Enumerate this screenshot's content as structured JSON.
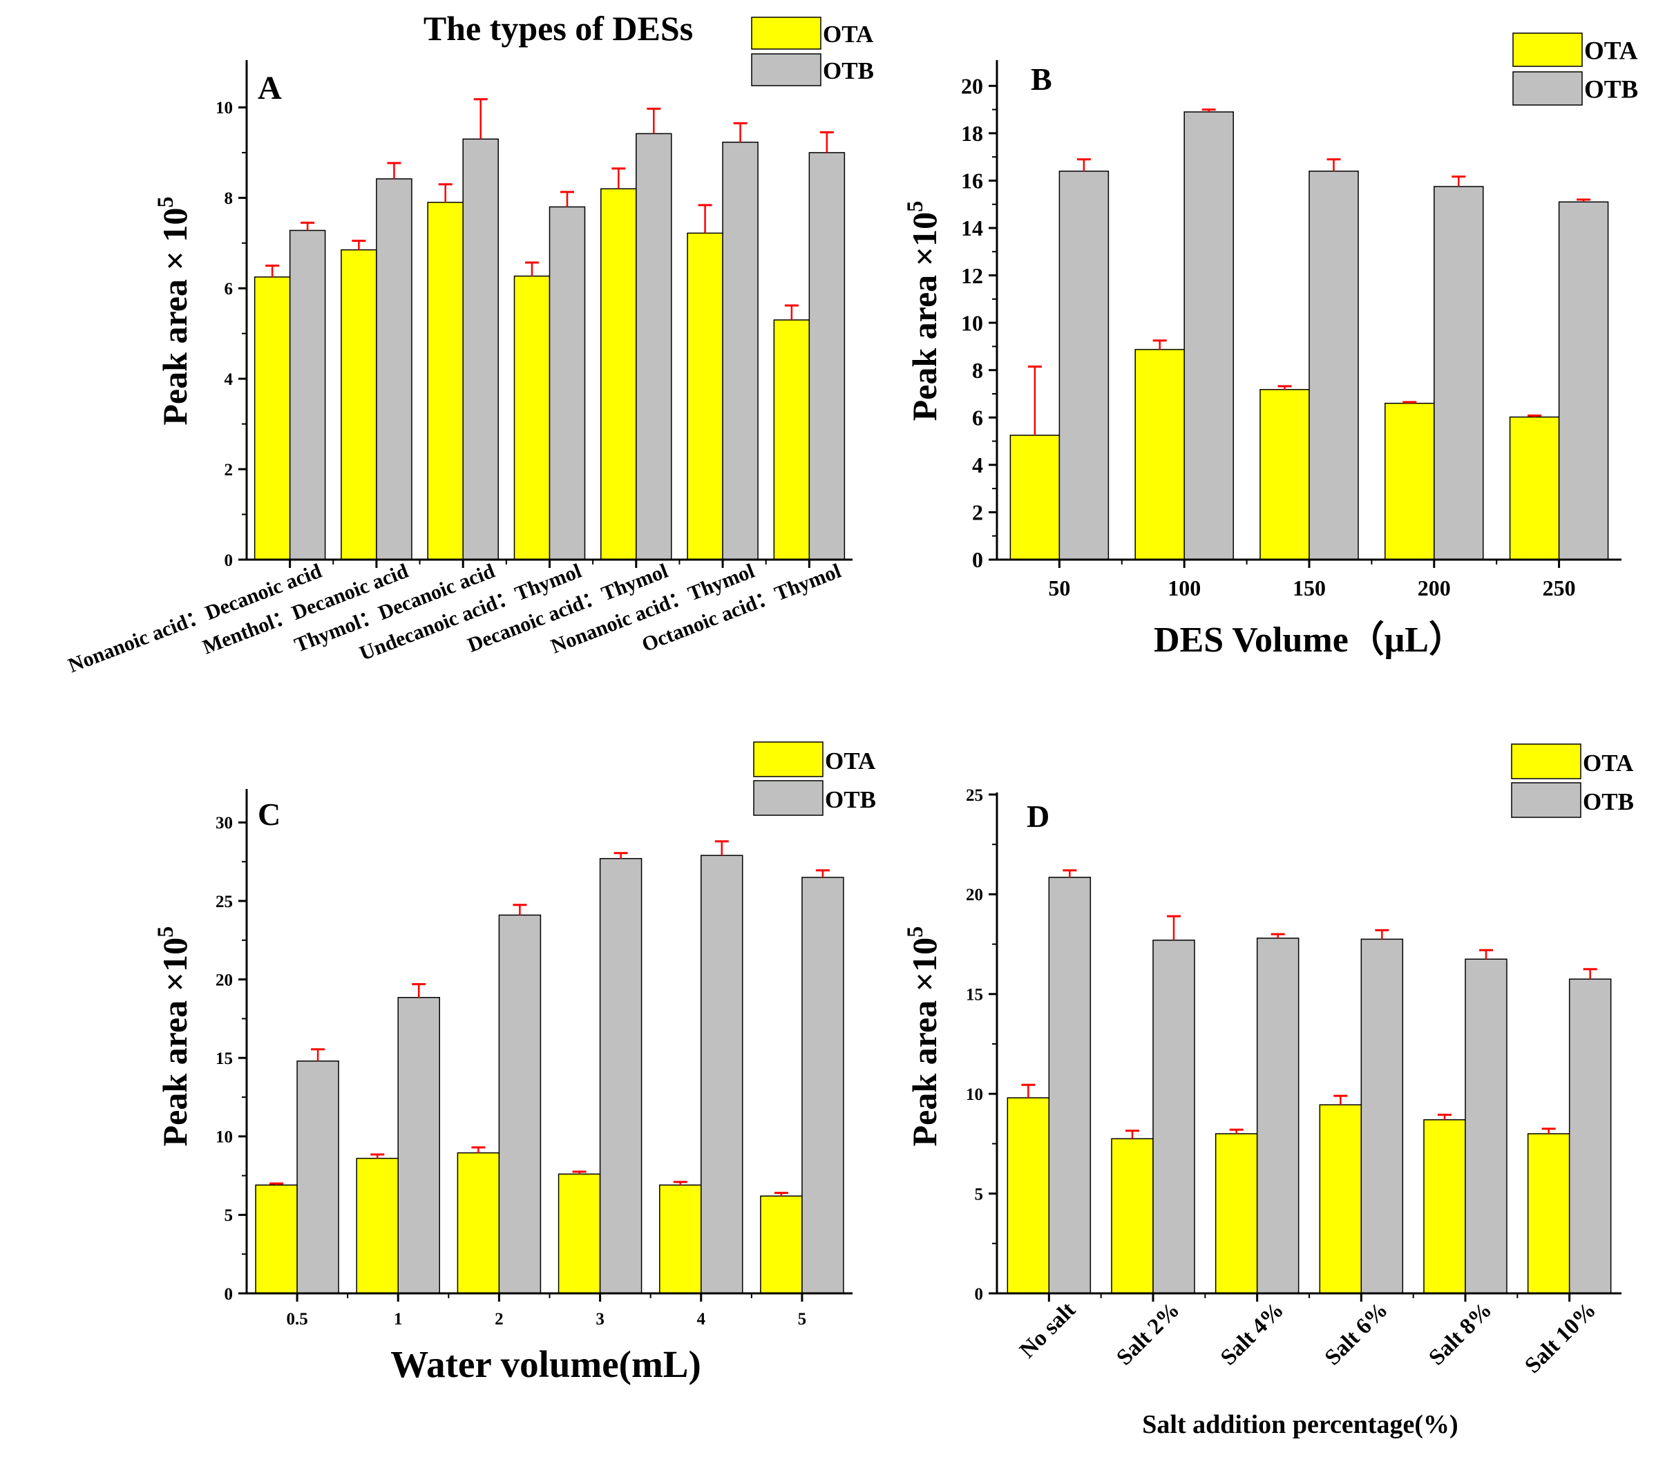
{
  "colors": {
    "ota": "#ffff00",
    "otb": "#c0c0c0",
    "error": "#ff0000",
    "axis": "#000000"
  },
  "chart_data": [
    {
      "type": "bar",
      "panel": "A",
      "title": "The types of DESs",
      "xlabel": "",
      "ylabel": "Peak area × 10",
      "ylabel_sup": "5",
      "ylim": [
        0,
        11
      ],
      "yticks": [
        0,
        2,
        4,
        6,
        8,
        10
      ],
      "legend_position": "top-right",
      "rotate_labels": true,
      "categories": [
        "Nonanoic acid：Decanoic acid",
        "Menthol：Decanoic acid",
        "Thymol：Decanoic acid",
        "Undecanoic acid：Thymol",
        "Decanoic acid：Thymol",
        "Nonanoic acid：Thymol",
        "Octanoic acid：Thymol"
      ],
      "series": [
        {
          "name": "OTA",
          "values": [
            6.25,
            6.85,
            7.9,
            6.27,
            8.2,
            7.22,
            5.3
          ],
          "errors": [
            0.25,
            0.2,
            0.4,
            0.3,
            0.45,
            0.62,
            0.32
          ]
        },
        {
          "name": "OTB",
          "values": [
            7.28,
            8.42,
            9.3,
            7.8,
            9.42,
            9.23,
            9.0
          ],
          "errors": [
            0.17,
            0.35,
            0.88,
            0.33,
            0.55,
            0.42,
            0.45
          ]
        }
      ]
    },
    {
      "type": "bar",
      "panel": "B",
      "title": "",
      "xlabel": "DES Volume（μL）",
      "ylabel": "Peak area ×10",
      "ylabel_sup": "5",
      "ylim": [
        0,
        21
      ],
      "yticks": [
        0,
        2,
        4,
        6,
        8,
        10,
        12,
        14,
        16,
        18,
        20
      ],
      "legend_position": "top-right",
      "rotate_labels": false,
      "categories": [
        "50",
        "100",
        "150",
        "200",
        "250"
      ],
      "series": [
        {
          "name": "OTA",
          "values": [
            5.25,
            8.87,
            7.18,
            6.6,
            6.02
          ],
          "errors": [
            2.9,
            0.38,
            0.14,
            0.05,
            0.06
          ]
        },
        {
          "name": "OTB",
          "values": [
            16.4,
            18.9,
            16.4,
            15.75,
            15.1
          ],
          "errors": [
            0.5,
            0.1,
            0.5,
            0.42,
            0.1
          ]
        }
      ]
    },
    {
      "type": "bar",
      "panel": "C",
      "title": "",
      "xlabel": "Water volume(mL)",
      "ylabel": "Peak area ×10",
      "ylabel_sup": "5",
      "ylim": [
        0,
        32
      ],
      "yticks": [
        0,
        5,
        10,
        15,
        20,
        25,
        30
      ],
      "legend_position": "top-right",
      "rotate_labels": false,
      "categories": [
        "0.5",
        "1",
        "2",
        "3",
        "4",
        "5"
      ],
      "series": [
        {
          "name": "OTA",
          "values": [
            6.9,
            8.6,
            8.95,
            7.6,
            6.9,
            6.2
          ],
          "errors": [
            0.1,
            0.25,
            0.35,
            0.15,
            0.2,
            0.2
          ]
        },
        {
          "name": "OTB",
          "values": [
            14.8,
            18.85,
            24.1,
            27.7,
            27.9,
            26.5
          ],
          "errors": [
            0.75,
            0.85,
            0.65,
            0.35,
            0.9,
            0.45
          ]
        }
      ]
    },
    {
      "type": "bar",
      "panel": "D",
      "title": "",
      "xlabel": "Salt addition percentage(%)",
      "ylabel": "Peak area ×10",
      "ylabel_sup": "5",
      "ylim": [
        0,
        25
      ],
      "yticks": [
        0,
        5,
        10,
        15,
        20,
        25
      ],
      "legend_position": "top-right",
      "rotate_labels": true,
      "categories": [
        "No salt",
        "Salt 2%",
        "Salt 4%",
        "Salt 6%",
        "Salt 8%",
        "Salt 10%"
      ],
      "series": [
        {
          "name": "OTA",
          "values": [
            9.8,
            7.75,
            8.0,
            9.45,
            8.7,
            8.0
          ],
          "errors": [
            0.65,
            0.4,
            0.2,
            0.45,
            0.25,
            0.25
          ]
        },
        {
          "name": "OTB",
          "values": [
            20.85,
            17.7,
            17.8,
            17.75,
            16.75,
            15.75
          ],
          "errors": [
            0.35,
            1.2,
            0.2,
            0.45,
            0.45,
            0.5
          ]
        }
      ]
    }
  ]
}
